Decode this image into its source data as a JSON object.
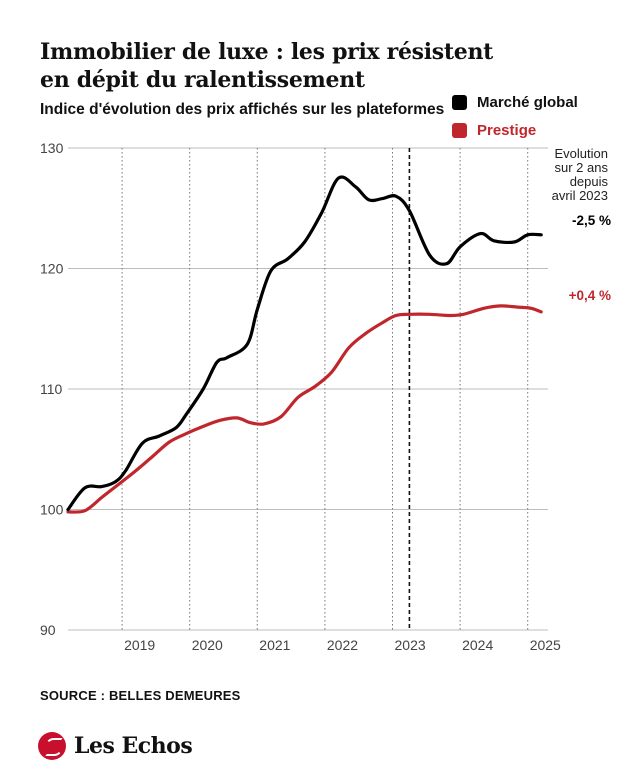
{
  "header": {
    "title": "Immobilier de luxe : les prix résistent en dépit du ralentissement",
    "subtitle": "Indice d'évolution des prix affichés sur les plateformes"
  },
  "legend": [
    {
      "label": "Marché global",
      "color": "#000000"
    },
    {
      "label": "Prestige",
      "color": "#c0272d"
    }
  ],
  "annotations": {
    "evolution_note": [
      "Evolution",
      "sur 2 ans",
      "depuis",
      "avril 2023"
    ],
    "global_change": "-2,5 %",
    "prestige_change": "+0,4 %"
  },
  "source": "SOURCE : BELLES DEMEURES",
  "brand": "Les Echos",
  "chart_data": {
    "type": "line",
    "xlabel": "",
    "ylabel": "",
    "ylim": [
      90,
      130
    ],
    "xlim": [
      2018.2,
      2025.3
    ],
    "yticks": [
      90,
      100,
      110,
      120,
      130
    ],
    "xticks": [
      "2019",
      "2020",
      "2021",
      "2022",
      "2023",
      "2024",
      "2025"
    ],
    "grid": "vertical dotted, horizontal solid",
    "marker_date": "avril 2023",
    "series": [
      {
        "name": "Marché global",
        "color": "#000000",
        "x": [
          2018.2,
          2018.45,
          2018.7,
          2018.9,
          2019.05,
          2019.3,
          2019.55,
          2019.8,
          2019.95,
          2020.2,
          2020.4,
          2020.55,
          2020.85,
          2021.0,
          2021.2,
          2021.45,
          2021.7,
          2021.95,
          2022.2,
          2022.45,
          2022.65,
          2022.85,
          2023.05,
          2023.25,
          2023.55,
          2023.8,
          2024.0,
          2024.3,
          2024.5,
          2024.8,
          2025.0,
          2025.2
        ],
        "y": [
          100.0,
          101.8,
          101.9,
          102.3,
          103.2,
          105.5,
          106.1,
          106.8,
          107.9,
          110.0,
          112.2,
          112.6,
          113.7,
          116.6,
          119.8,
          120.8,
          122.2,
          124.6,
          127.5,
          126.8,
          125.7,
          125.8,
          126.0,
          124.8,
          121.1,
          120.4,
          121.8,
          122.9,
          122.3,
          122.2,
          122.8,
          122.8
        ]
      },
      {
        "name": "Prestige",
        "color": "#c0272d",
        "x": [
          2018.2,
          2018.45,
          2018.7,
          2018.95,
          2019.2,
          2019.45,
          2019.7,
          2019.95,
          2020.2,
          2020.45,
          2020.7,
          2020.9,
          2021.1,
          2021.35,
          2021.6,
          2021.85,
          2022.1,
          2022.35,
          2022.6,
          2022.85,
          2023.05,
          2023.25,
          2023.55,
          2023.85,
          2024.05,
          2024.35,
          2024.6,
          2024.85,
          2025.05,
          2025.2
        ],
        "y": [
          99.8,
          99.9,
          101.0,
          102.1,
          103.2,
          104.4,
          105.6,
          106.3,
          106.9,
          107.4,
          107.6,
          107.2,
          107.1,
          107.7,
          109.3,
          110.2,
          111.4,
          113.4,
          114.6,
          115.5,
          116.1,
          116.2,
          116.2,
          116.1,
          116.2,
          116.7,
          116.9,
          116.8,
          116.7,
          116.4
        ]
      }
    ]
  }
}
